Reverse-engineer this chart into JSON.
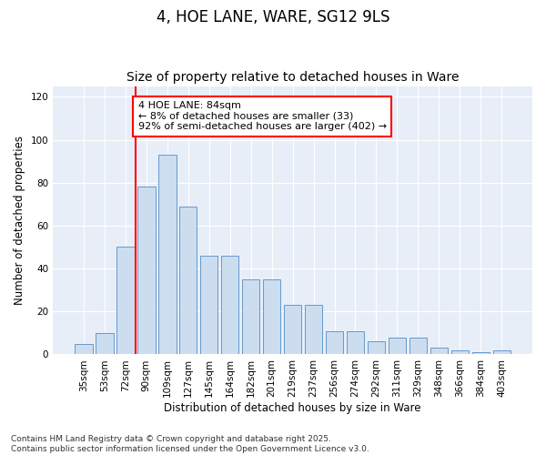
{
  "title": "4, HOE LANE, WARE, SG12 9LS",
  "subtitle": "Size of property relative to detached houses in Ware",
  "xlabel": "Distribution of detached houses by size in Ware",
  "ylabel": "Number of detached properties",
  "categories": [
    "35sqm",
    "53sqm",
    "72sqm",
    "90sqm",
    "109sqm",
    "127sqm",
    "145sqm",
    "164sqm",
    "182sqm",
    "201sqm",
    "219sqm",
    "237sqm",
    "256sqm",
    "274sqm",
    "292sqm",
    "311sqm",
    "329sqm",
    "348sqm",
    "366sqm",
    "384sqm",
    "403sqm"
  ],
  "values": [
    5,
    10,
    50,
    78,
    93,
    69,
    46,
    46,
    35,
    35,
    23,
    23,
    11,
    11,
    6,
    8,
    8,
    3,
    2,
    1,
    2
  ],
  "bar_color": "#ccddf0",
  "bar_edge_color": "#6699cc",
  "vline_x_index": 3,
  "vline_color": "red",
  "annotation_text": "4 HOE LANE: 84sqm\n← 8% of detached houses are smaller (33)\n92% of semi-detached houses are larger (402) →",
  "ylim": [
    0,
    125
  ],
  "yticks": [
    0,
    20,
    40,
    60,
    80,
    100,
    120
  ],
  "bg_color": "#e8eef8",
  "grid_color": "#ffffff",
  "footer": "Contains HM Land Registry data © Crown copyright and database right 2025.\nContains public sector information licensed under the Open Government Licence v3.0.",
  "title_fontsize": 12,
  "subtitle_fontsize": 10,
  "axis_label_fontsize": 8.5,
  "tick_fontsize": 7.5,
  "annotation_fontsize": 8,
  "footer_fontsize": 6.5
}
